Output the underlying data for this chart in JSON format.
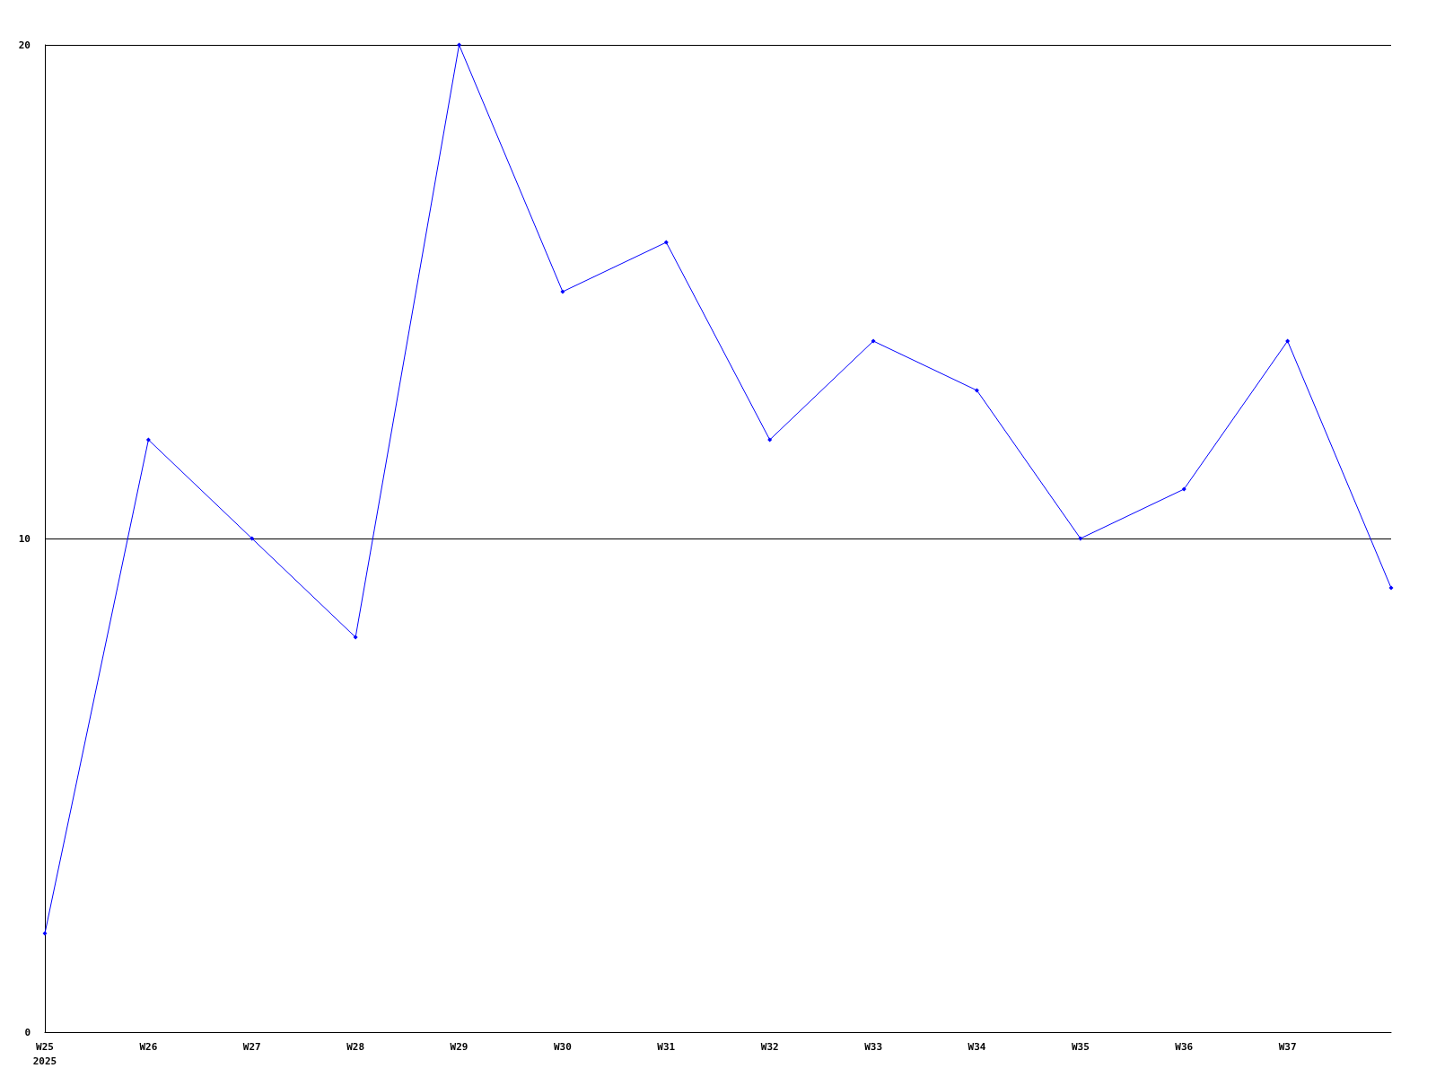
{
  "chart_data": {
    "type": "line",
    "categories": [
      "W25\n2025",
      "W26",
      "W27",
      "W28",
      "W29",
      "W30",
      "W31",
      "W32",
      "W33",
      "W34",
      "W35",
      "W36",
      "W37",
      null
    ],
    "series": [
      {
        "color": "#0000ff",
        "values": [
          2,
          12,
          10,
          8,
          20,
          15,
          16,
          12,
          14,
          13,
          10,
          11,
          14,
          9
        ]
      }
    ],
    "ylim": [
      0,
      20
    ],
    "yticks": [
      0,
      10,
      20
    ],
    "grid": "y",
    "marker": "diamond",
    "line_style": "solid"
  }
}
